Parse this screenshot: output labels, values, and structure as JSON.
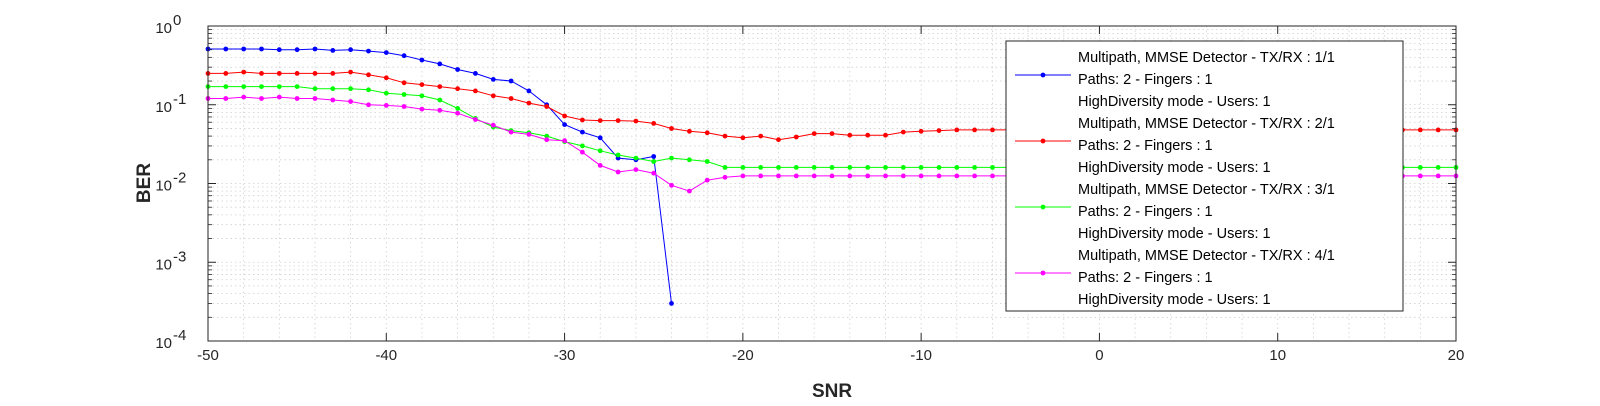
{
  "chart_data": {
    "type": "line",
    "title": "",
    "xlabel": "SNR",
    "ylabel": "BER",
    "xlim": [
      -50,
      20
    ],
    "ylim": [
      0.0001,
      1
    ],
    "yscale": "log",
    "grid": true,
    "legend_position": "top-right",
    "x_ticks": [
      "-50",
      "-40",
      "-30",
      "-20",
      "-10",
      "0",
      "10",
      "20"
    ],
    "y_ticks": [
      {
        "base": "10",
        "exp": "-4"
      },
      {
        "base": "10",
        "exp": "-3"
      },
      {
        "base": "10",
        "exp": "-2"
      },
      {
        "base": "10",
        "exp": "-1"
      },
      {
        "base": "10",
        "exp": "0"
      }
    ],
    "series": [
      {
        "name_lines": [
          "Multipath, MMSE Detector - TX/RX : 1/1",
          "Paths: 2 - Fingers : 1",
          "HighDiversity mode - Users: 1"
        ],
        "color": "#0000ff",
        "x": [
          -50,
          -49,
          -48,
          -47,
          -46,
          -45,
          -44,
          -43,
          -42,
          -41,
          -40,
          -39,
          -38,
          -37,
          -36,
          -35,
          -34,
          -33,
          -32,
          -31,
          -30,
          -29,
          -28,
          -27,
          -26,
          -25,
          -24
        ],
        "y": [
          0.51,
          0.51,
          0.51,
          0.51,
          0.5,
          0.5,
          0.51,
          0.49,
          0.5,
          0.48,
          0.46,
          0.42,
          0.37,
          0.33,
          0.28,
          0.25,
          0.21,
          0.2,
          0.15,
          0.1,
          0.056,
          0.045,
          0.038,
          0.021,
          0.02,
          0.022,
          0.0003
        ]
      },
      {
        "name_lines": [
          "Multipath, MMSE Detector - TX/RX : 2/1",
          "Paths: 2 - Fingers : 1",
          "HighDiversity mode - Users: 1"
        ],
        "color": "#ff0000",
        "x": [
          -50,
          -49,
          -48,
          -47,
          -46,
          -45,
          -44,
          -43,
          -42,
          -41,
          -40,
          -39,
          -38,
          -37,
          -36,
          -35,
          -34,
          -33,
          -32,
          -31,
          -30,
          -29,
          -28,
          -27,
          -26,
          -25,
          -24,
          -23,
          -22,
          -21,
          -20,
          -19,
          -18,
          -17,
          -16,
          -15,
          -14,
          -13,
          -12,
          -11,
          -10,
          -9,
          -8,
          -7,
          -6,
          -5,
          -4,
          -3,
          -2,
          -1,
          0,
          1,
          2,
          3,
          4,
          5,
          6,
          7,
          8,
          9,
          10,
          11,
          12,
          13,
          14,
          15,
          16,
          17,
          18,
          19,
          20
        ],
        "y": [
          0.25,
          0.25,
          0.26,
          0.25,
          0.25,
          0.25,
          0.25,
          0.25,
          0.26,
          0.24,
          0.22,
          0.19,
          0.18,
          0.17,
          0.16,
          0.15,
          0.13,
          0.12,
          0.105,
          0.095,
          0.072,
          0.064,
          0.063,
          0.063,
          0.062,
          0.058,
          0.05,
          0.046,
          0.044,
          0.04,
          0.038,
          0.04,
          0.036,
          0.039,
          0.043,
          0.043,
          0.041,
          0.041,
          0.041,
          0.045,
          0.046,
          0.047,
          0.048,
          0.048,
          0.048,
          0.048,
          0.048,
          0.048,
          0.048,
          0.048,
          0.048,
          0.048,
          0.048,
          0.048,
          0.048,
          0.048,
          0.048,
          0.048,
          0.048,
          0.048,
          0.048,
          0.048,
          0.048,
          0.048,
          0.048,
          0.048,
          0.048,
          0.048,
          0.048,
          0.048,
          0.048
        ]
      },
      {
        "name_lines": [
          "Multipath, MMSE Detector - TX/RX : 3/1",
          "Paths: 2 - Fingers : 1",
          "HighDiversity mode - Users: 1"
        ],
        "color": "#00ff00",
        "x": [
          -50,
          -49,
          -48,
          -47,
          -46,
          -45,
          -44,
          -43,
          -42,
          -41,
          -40,
          -39,
          -38,
          -37,
          -36,
          -35,
          -34,
          -33,
          -32,
          -31,
          -30,
          -29,
          -28,
          -27,
          -26,
          -25,
          -24,
          -23,
          -22,
          -21,
          -20,
          -19,
          -18,
          -17,
          -16,
          -15,
          -14,
          -13,
          -12,
          -11,
          -10,
          -9,
          -8,
          -7,
          -6,
          -5,
          -4,
          -3,
          -2,
          -1,
          0,
          1,
          2,
          3,
          4,
          5,
          6,
          7,
          8,
          9,
          10,
          11,
          12,
          13,
          14,
          15,
          16,
          17,
          18,
          19,
          20
        ],
        "y": [
          0.17,
          0.17,
          0.17,
          0.17,
          0.17,
          0.17,
          0.16,
          0.16,
          0.16,
          0.155,
          0.14,
          0.135,
          0.13,
          0.115,
          0.09,
          0.067,
          0.052,
          0.047,
          0.044,
          0.04,
          0.034,
          0.03,
          0.026,
          0.023,
          0.021,
          0.019,
          0.021,
          0.02,
          0.019,
          0.016,
          0.016,
          0.016,
          0.016,
          0.016,
          0.016,
          0.016,
          0.016,
          0.016,
          0.016,
          0.016,
          0.016,
          0.016,
          0.016,
          0.016,
          0.016,
          0.016,
          0.016,
          0.016,
          0.016,
          0.016,
          0.016,
          0.016,
          0.016,
          0.016,
          0.016,
          0.016,
          0.016,
          0.016,
          0.016,
          0.016,
          0.016,
          0.016,
          0.016,
          0.016,
          0.016,
          0.016,
          0.016,
          0.016,
          0.016,
          0.016,
          0.016
        ]
      },
      {
        "name_lines": [
          "Multipath, MMSE Detector - TX/RX : 4/1",
          "Paths: 2 - Fingers : 1",
          "HighDiversity mode - Users: 1"
        ],
        "color": "#ff00ff",
        "x": [
          -50,
          -49,
          -48,
          -47,
          -46,
          -45,
          -44,
          -43,
          -42,
          -41,
          -40,
          -39,
          -38,
          -37,
          -36,
          -35,
          -34,
          -33,
          -32,
          -31,
          -30,
          -29,
          -28,
          -27,
          -26,
          -25,
          -24,
          -23,
          -22,
          -21,
          -20,
          -19,
          -18,
          -17,
          -16,
          -15,
          -14,
          -13,
          -12,
          -11,
          -10,
          -9,
          -8,
          -7,
          -6,
          -5,
          -4,
          -3,
          -2,
          -1,
          0,
          1,
          2,
          3,
          4,
          5,
          6,
          7,
          8,
          9,
          10,
          11,
          12,
          13,
          14,
          15,
          16,
          17,
          18,
          19,
          20
        ],
        "y": [
          0.12,
          0.12,
          0.125,
          0.12,
          0.125,
          0.12,
          0.12,
          0.115,
          0.11,
          0.1,
          0.098,
          0.095,
          0.088,
          0.085,
          0.078,
          0.065,
          0.055,
          0.045,
          0.042,
          0.036,
          0.035,
          0.025,
          0.017,
          0.014,
          0.015,
          0.0135,
          0.0095,
          0.008,
          0.011,
          0.012,
          0.0125,
          0.0125,
          0.0125,
          0.0125,
          0.0125,
          0.0125,
          0.0125,
          0.0125,
          0.0125,
          0.0125,
          0.0125,
          0.0125,
          0.0125,
          0.0125,
          0.0125,
          0.0125,
          0.0125,
          0.0125,
          0.0125,
          0.0125,
          0.0125,
          0.0125,
          0.0125,
          0.0125,
          0.0125,
          0.0125,
          0.0125,
          0.0125,
          0.0125,
          0.0125,
          0.0125,
          0.0125,
          0.0125,
          0.0125,
          0.0125,
          0.0125,
          0.0125,
          0.0125,
          0.0125,
          0.0125,
          0.0125
        ]
      }
    ]
  }
}
